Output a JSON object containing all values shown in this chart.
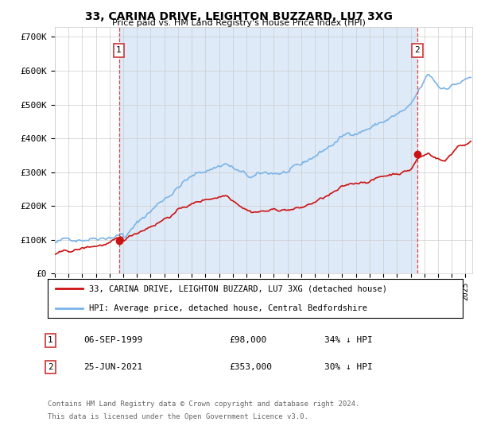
{
  "title": "33, CARINA DRIVE, LEIGHTON BUZZARD, LU7 3XG",
  "subtitle": "Price paid vs. HM Land Registry's House Price Index (HPI)",
  "ylabel_ticks": [
    "£0",
    "£100K",
    "£200K",
    "£300K",
    "£400K",
    "£500K",
    "£600K",
    "£700K"
  ],
  "ytick_values": [
    0,
    100000,
    200000,
    300000,
    400000,
    500000,
    600000,
    700000
  ],
  "ylim": [
    0,
    730000
  ],
  "xlim_start": 1995.0,
  "xlim_end": 2025.5,
  "sale1_x": 1999.68,
  "sale1_y": 98000,
  "sale2_x": 2021.48,
  "sale2_y": 353000,
  "legend_line1": "33, CARINA DRIVE, LEIGHTON BUZZARD, LU7 3XG (detached house)",
  "legend_line2": "HPI: Average price, detached house, Central Bedfordshire",
  "table_row1": [
    "1",
    "06-SEP-1999",
    "£98,000",
    "34% ↓ HPI"
  ],
  "table_row2": [
    "2",
    "25-JUN-2021",
    "£353,000",
    "30% ↓ HPI"
  ],
  "footer1": "Contains HM Land Registry data © Crown copyright and database right 2024.",
  "footer2": "This data is licensed under the Open Government Licence v3.0.",
  "hpi_color": "#7ab4e8",
  "sale_color": "#cc1111",
  "vline_color": "#dd4444",
  "shade_color": "#deeaf7",
  "background_color": "#ffffff",
  "grid_color": "#cccccc"
}
